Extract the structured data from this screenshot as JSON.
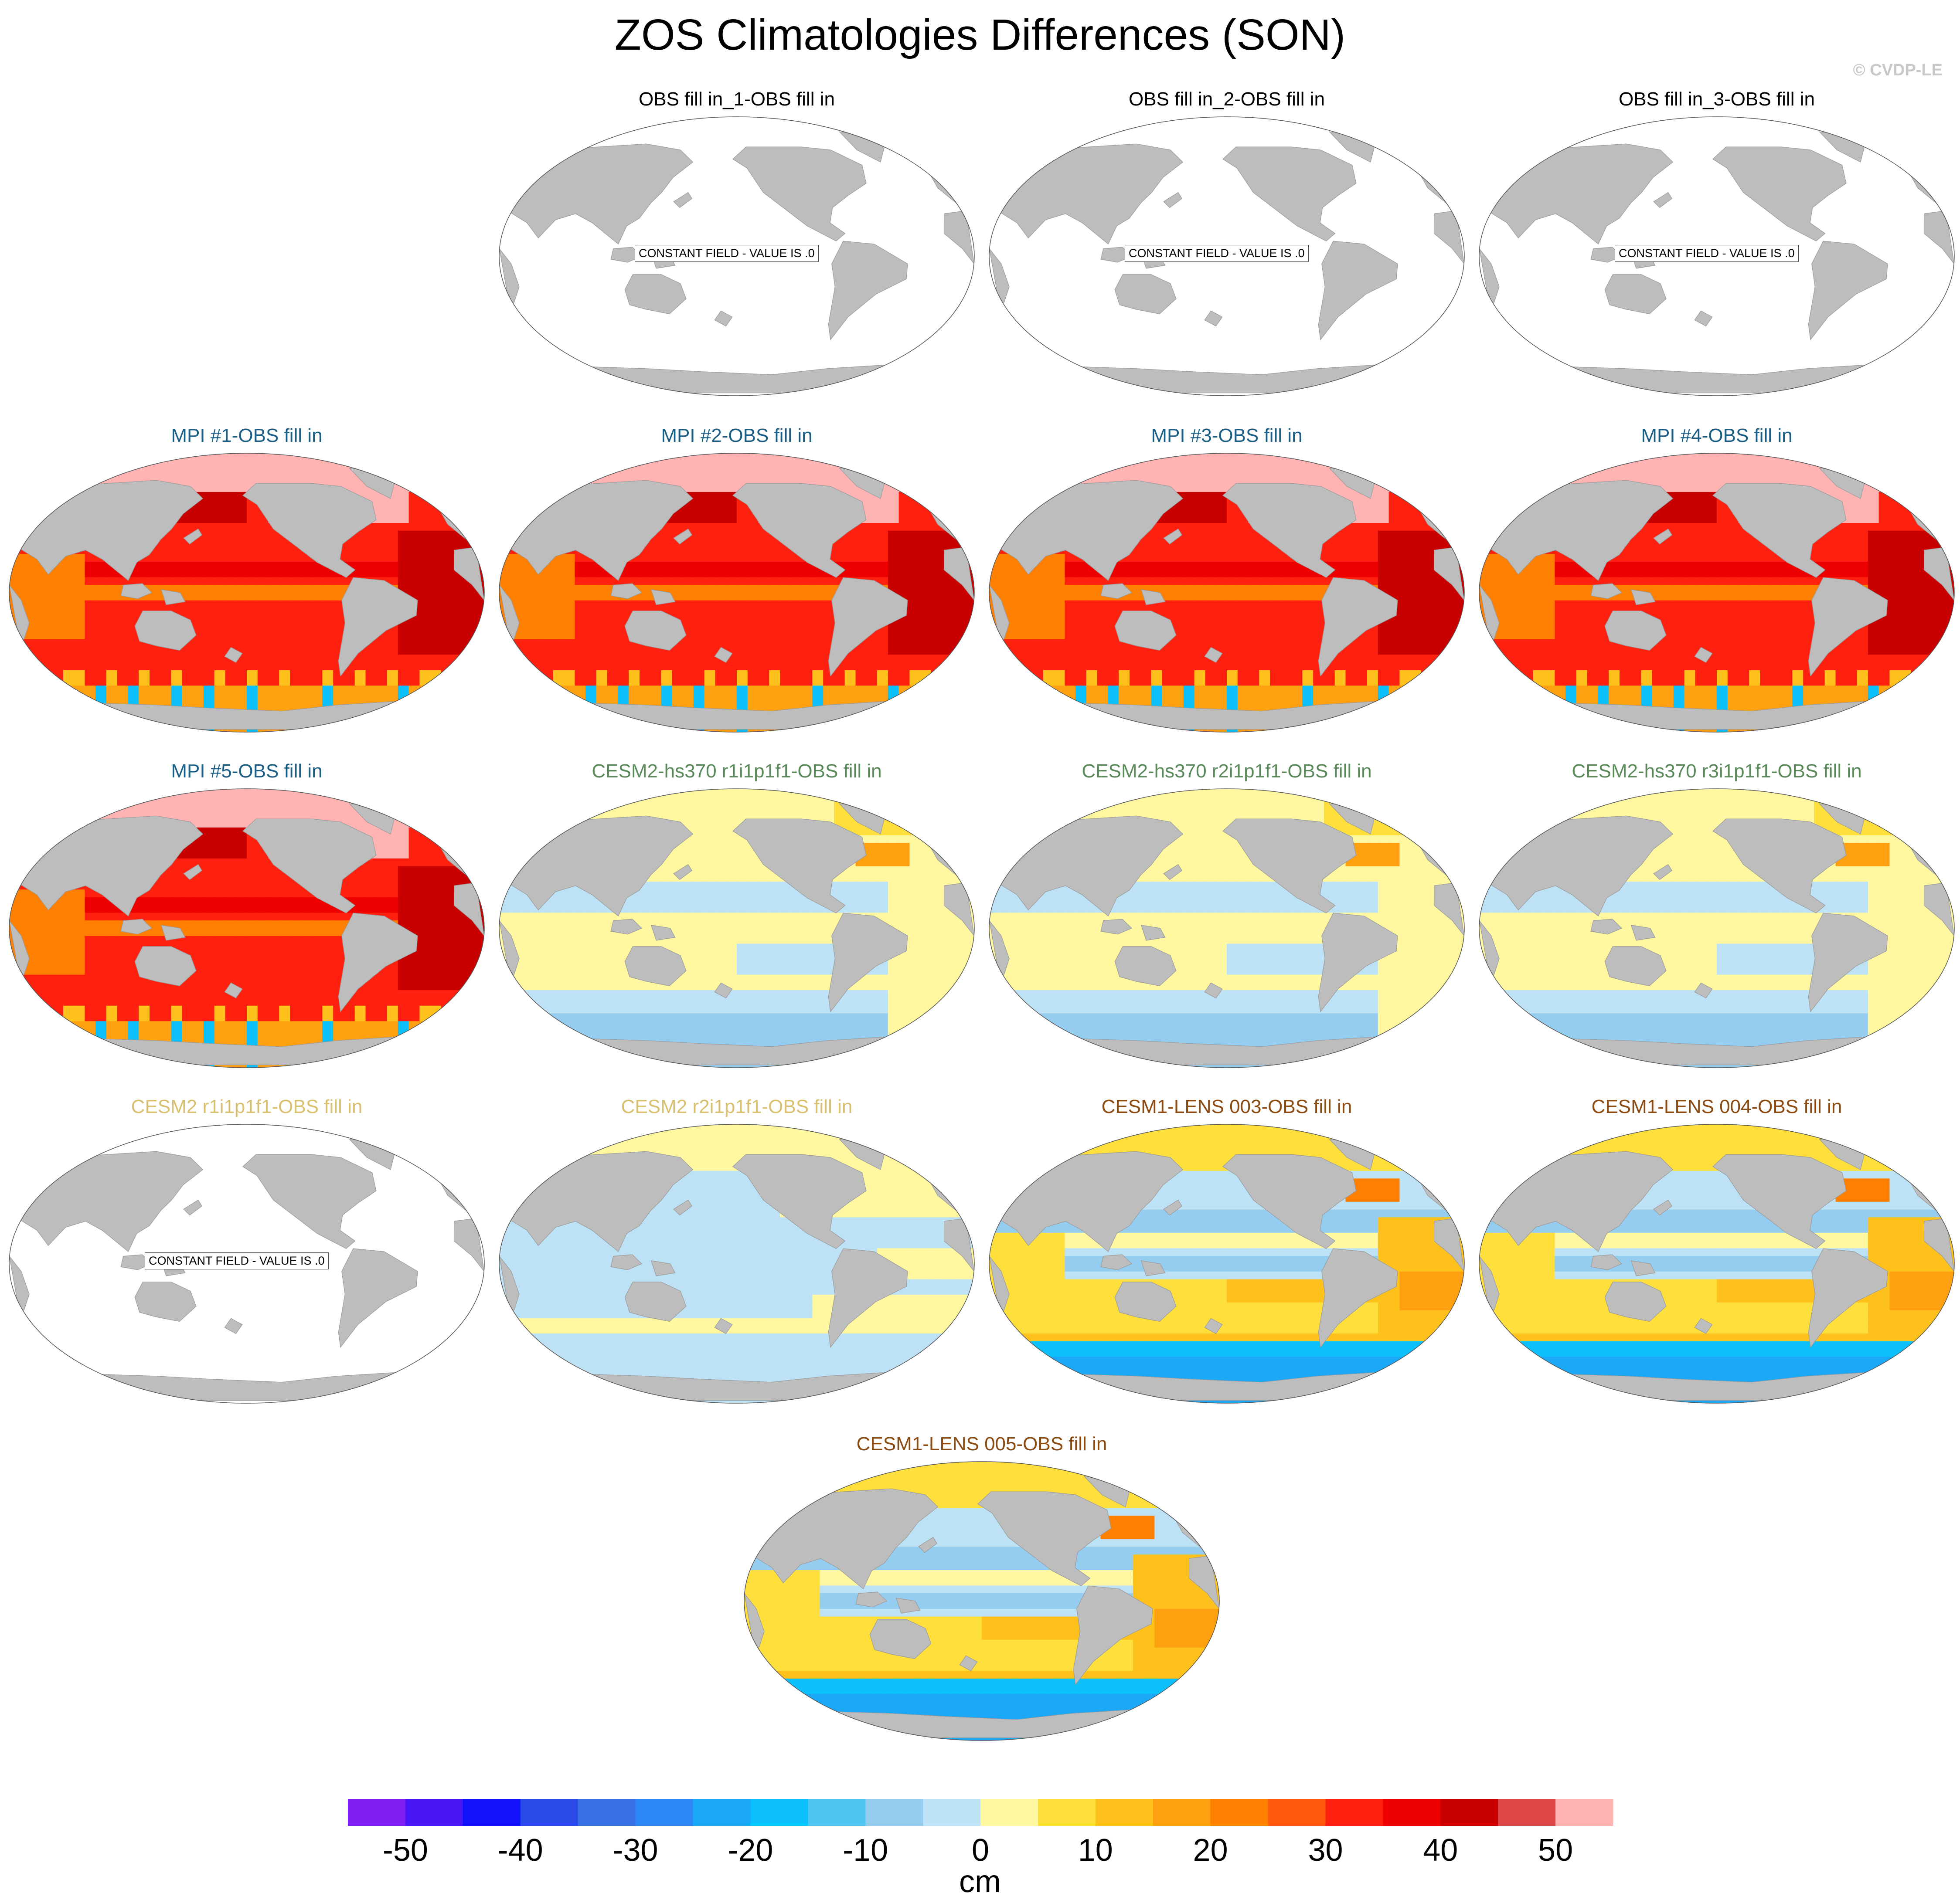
{
  "chart_data": {
    "type": "heatmap",
    "title": "ZOS Climatologies Differences (SON)",
    "credit": "© CVDP-LE",
    "units": "cm",
    "projection": "Robinson, Pacific-centered",
    "colorbar": {
      "colors": [
        "#7f1ff0",
        "#4816f5",
        "#1212fa",
        "#2a4ae8",
        "#3870e6",
        "#2d86f5",
        "#1aa8f7",
        "#0cc0fb",
        "#4ec5f1",
        "#94cdf0",
        "#bde1f5",
        "#fff8a0",
        "#ffdf3c",
        "#ffc21c",
        "#ffa010",
        "#ff8000",
        "#ff5a10",
        "#ff2010",
        "#ee0000",
        "#c80000",
        "#dd4646",
        "#ffb3b3"
      ],
      "ticks": [
        -50,
        -40,
        -30,
        -20,
        -10,
        0,
        10,
        20,
        30,
        40,
        50
      ],
      "tick_labels": [
        "-50",
        "-40",
        "-30",
        "-20",
        "-10",
        "0",
        "10",
        "20",
        "30",
        "40",
        "50"
      ],
      "range": [
        -55,
        55
      ],
      "interval": 5
    },
    "panels": [
      {
        "label": "OBS fill in_1-OBS fill in",
        "color": "#000000",
        "pattern": "constant",
        "note": "CONSTANT FIELD - VALUE IS .0"
      },
      {
        "label": "OBS fill in_2-OBS fill in",
        "color": "#000000",
        "pattern": "constant",
        "note": "CONSTANT FIELD - VALUE IS .0"
      },
      {
        "label": "OBS fill in_3-OBS fill in",
        "color": "#000000",
        "pattern": "constant",
        "note": "CONSTANT FIELD - VALUE IS .0"
      },
      {
        "label": "MPI #1-OBS fill in",
        "color": "#1a5e86",
        "pattern": "mpi"
      },
      {
        "label": "MPI #2-OBS fill in",
        "color": "#1a5e86",
        "pattern": "mpi"
      },
      {
        "label": "MPI #3-OBS fill in",
        "color": "#1a5e86",
        "pattern": "mpi"
      },
      {
        "label": "MPI #4-OBS fill in",
        "color": "#1a5e86",
        "pattern": "mpi"
      },
      {
        "label": "MPI #5-OBS fill in",
        "color": "#1a5e86",
        "pattern": "mpi"
      },
      {
        "label": "CESM2-hs370 r1i1p1f1-OBS fill in",
        "color": "#5a8a5a",
        "pattern": "cesm2"
      },
      {
        "label": "CESM2-hs370 r2i1p1f1-OBS fill in",
        "color": "#5a8a5a",
        "pattern": "cesm2"
      },
      {
        "label": "CESM2-hs370 r3i1p1f1-OBS fill in",
        "color": "#5a8a5a",
        "pattern": "cesm2"
      },
      {
        "label": "CESM2 r1i1p1f1-OBS fill in",
        "color": "#d8c070",
        "pattern": "constant",
        "note": "CONSTANT FIELD - VALUE IS .0"
      },
      {
        "label": "CESM2 r2i1p1f1-OBS fill in",
        "color": "#d8c070",
        "pattern": "cesm2b"
      },
      {
        "label": "CESM1-LENS 003-OBS fill in",
        "color": "#8b4a10",
        "pattern": "lens"
      },
      {
        "label": "CESM1-LENS 004-OBS fill in",
        "color": "#8b4a10",
        "pattern": "lens"
      },
      {
        "label": "CESM1-LENS 005-OBS fill in",
        "color": "#8b4a10",
        "pattern": "lens"
      }
    ]
  }
}
